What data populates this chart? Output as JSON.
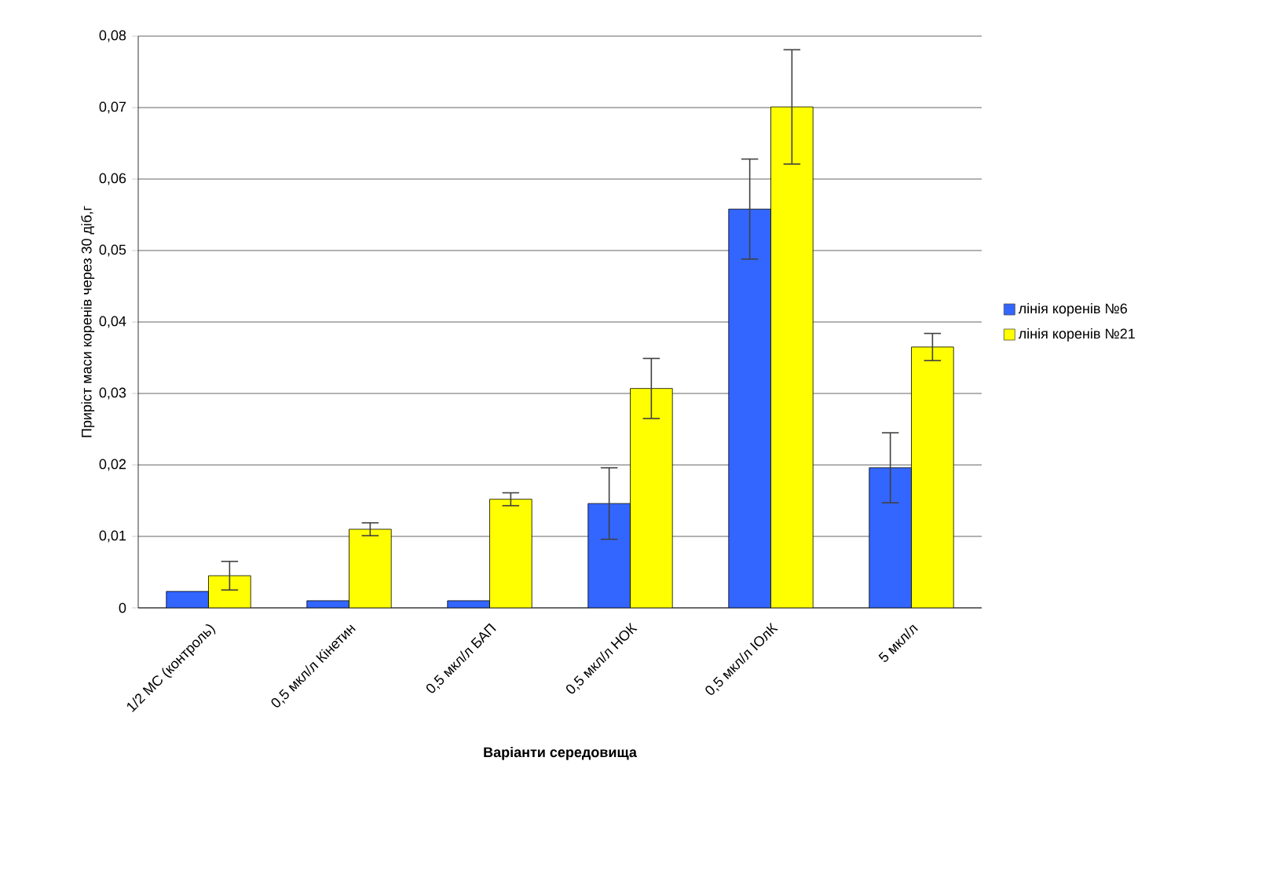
{
  "chart_data": {
    "type": "bar",
    "xlabel": "Варіанти середовища",
    "ylabel": "Приріст маси коренів через 30 діб,г",
    "categories": [
      "1/2 МС (контроль)",
      "0,5 мкл/л Кінетин",
      "0,5 мкл/л БАП",
      "0,5 мкл/л НОК",
      "0,5 мкл/л ІОлК",
      "5 мкл/л"
    ],
    "series": [
      {
        "name": "лінія коренів №6",
        "color": "#3366ff",
        "values": [
          0.0023,
          0.001,
          0.001,
          0.0146,
          0.0558,
          0.0196
        ],
        "errors": [
          null,
          null,
          null,
          0.005,
          0.007,
          0.0049
        ]
      },
      {
        "name": "лінія коренів №21",
        "color": "#ffff00",
        "values": [
          0.0045,
          0.011,
          0.0152,
          0.0307,
          0.0701,
          0.0365
        ],
        "errors": [
          0.002,
          0.0009,
          0.0009,
          0.0042,
          0.008,
          0.0019
        ]
      }
    ],
    "ylim": [
      0,
      0.08
    ],
    "yticks": [
      {
        "value": 0,
        "label": "0"
      },
      {
        "value": 0.01,
        "label": "0,01"
      },
      {
        "value": 0.02,
        "label": "0,02"
      },
      {
        "value": 0.03,
        "label": "0,03"
      },
      {
        "value": 0.04,
        "label": "0,04"
      },
      {
        "value": 0.05,
        "label": "0,05"
      },
      {
        "value": 0.06,
        "label": "0,06"
      },
      {
        "value": 0.07,
        "label": "0,07"
      },
      {
        "value": 0.08,
        "label": "0,08"
      }
    ],
    "grid": "y",
    "legend": "right"
  }
}
